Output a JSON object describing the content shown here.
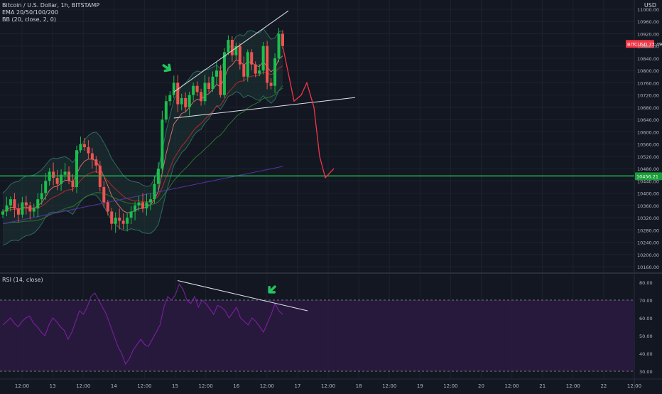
{
  "header": {
    "symbol_line": "Bitcoin / U.S. Dollar, 1h, BITSTAMP",
    "ema_line": "EMA 20/50/100/200",
    "bb_line": "BB (20, close, 2, 0)",
    "currency": "USD"
  },
  "price_axis": {
    "ticks": [
      "11000.00",
      "10960.00",
      "10920.00",
      "10880.00",
      "10840.00",
      "10800.00",
      "10760.00",
      "10720.00",
      "10680.00",
      "10640.00",
      "10600.00",
      "10560.00",
      "10520.00",
      "10480.00",
      "10440.00",
      "10400.00",
      "10360.00",
      "10320.00",
      "10280.00",
      "10240.00",
      "10200.00",
      "10160.00"
    ],
    "current_price_badge": {
      "label": "BITCUSD",
      "value": "73:49",
      "color": "#f23645"
    },
    "level_badge": {
      "value": "10456.21",
      "color": "#1a9e3a"
    }
  },
  "rsi_panel": {
    "title": "RSI (14, close)",
    "ticks": [
      "80.00",
      "70.00",
      "60.00",
      "50.00",
      "40.00",
      "30.00"
    ],
    "band_upper": 70,
    "band_lower": 30
  },
  "time_axis": {
    "labels": [
      "12:00",
      "13",
      "12:00",
      "14",
      "12:00",
      "15",
      "12:00",
      "16",
      "12:00",
      "17",
      "12:00",
      "18",
      "12:00",
      "19",
      "12:00",
      "20",
      "12:00",
      "21",
      "12:00",
      "22",
      "12:00"
    ]
  },
  "colors": {
    "background": "#131722",
    "up_candle": "#26a69a",
    "up_candle_bright": "#1bbf4d",
    "down_candle": "#ef5350",
    "forecast_line": "#f23645",
    "support_line": "#1db954",
    "rsi_line": "#7b1fa2",
    "rsi_band": "#2a1a3e",
    "arrow": "#22c55e",
    "trendline": "#e0e3eb"
  },
  "chart_data": [
    {
      "type": "candlestick",
      "title": "Bitcoin / U.S. Dollar, 1h, BITSTAMP",
      "ylabel": "USD",
      "ylim": [
        10150,
        11010
      ],
      "x_range_hours": [
        "Aug 12 12:00",
        "Aug 22 12:00"
      ],
      "support_level": 10456.21,
      "approx_close_series": [
        10340,
        10360,
        10380,
        10350,
        10330,
        10370,
        10360,
        10340,
        10350,
        10380,
        10400,
        10440,
        10470,
        10450,
        10430,
        10460,
        10470,
        10440,
        10420,
        10540,
        10560,
        10550,
        10530,
        10510,
        10490,
        10420,
        10370,
        10340,
        10300,
        10320,
        10310,
        10300,
        10320,
        10340,
        10360,
        10370,
        10350,
        10370,
        10380,
        10430,
        10480,
        10640,
        10700,
        10720,
        10760,
        10690,
        10710,
        10680,
        10720,
        10750,
        10730,
        10700,
        10760,
        10740,
        10780,
        10800,
        10720,
        10860,
        10900,
        10850,
        10880,
        10820,
        10780,
        10860,
        10820,
        10790,
        10800,
        10880,
        10760,
        10750,
        10840,
        10920,
        10880
      ],
      "forecast_path": [
        10880,
        10700,
        10720,
        10760,
        10680,
        10520,
        10450,
        10480
      ],
      "annotations": [
        "rising wedge",
        "green arrow",
        "red forecast path"
      ]
    },
    {
      "type": "line",
      "title": "RSI (14, close)",
      "ylim": [
        28,
        82
      ],
      "reference_lines": [
        70,
        30
      ],
      "values": [
        56,
        58,
        60,
        57,
        55,
        58,
        60,
        61,
        57,
        55,
        52,
        50,
        56,
        60,
        58,
        55,
        53,
        48,
        52,
        58,
        64,
        62,
        66,
        72,
        74,
        70,
        66,
        62,
        56,
        50,
        44,
        40,
        34,
        37,
        42,
        45,
        48,
        45,
        44,
        48,
        52,
        56,
        66,
        72,
        70,
        73,
        79,
        76,
        70,
        68,
        72,
        66,
        70,
        68,
        65,
        62,
        67,
        66,
        64,
        60,
        63,
        66,
        60,
        58,
        56,
        60,
        58,
        55,
        52,
        57,
        62,
        68,
        64,
        62
      ]
    }
  ]
}
